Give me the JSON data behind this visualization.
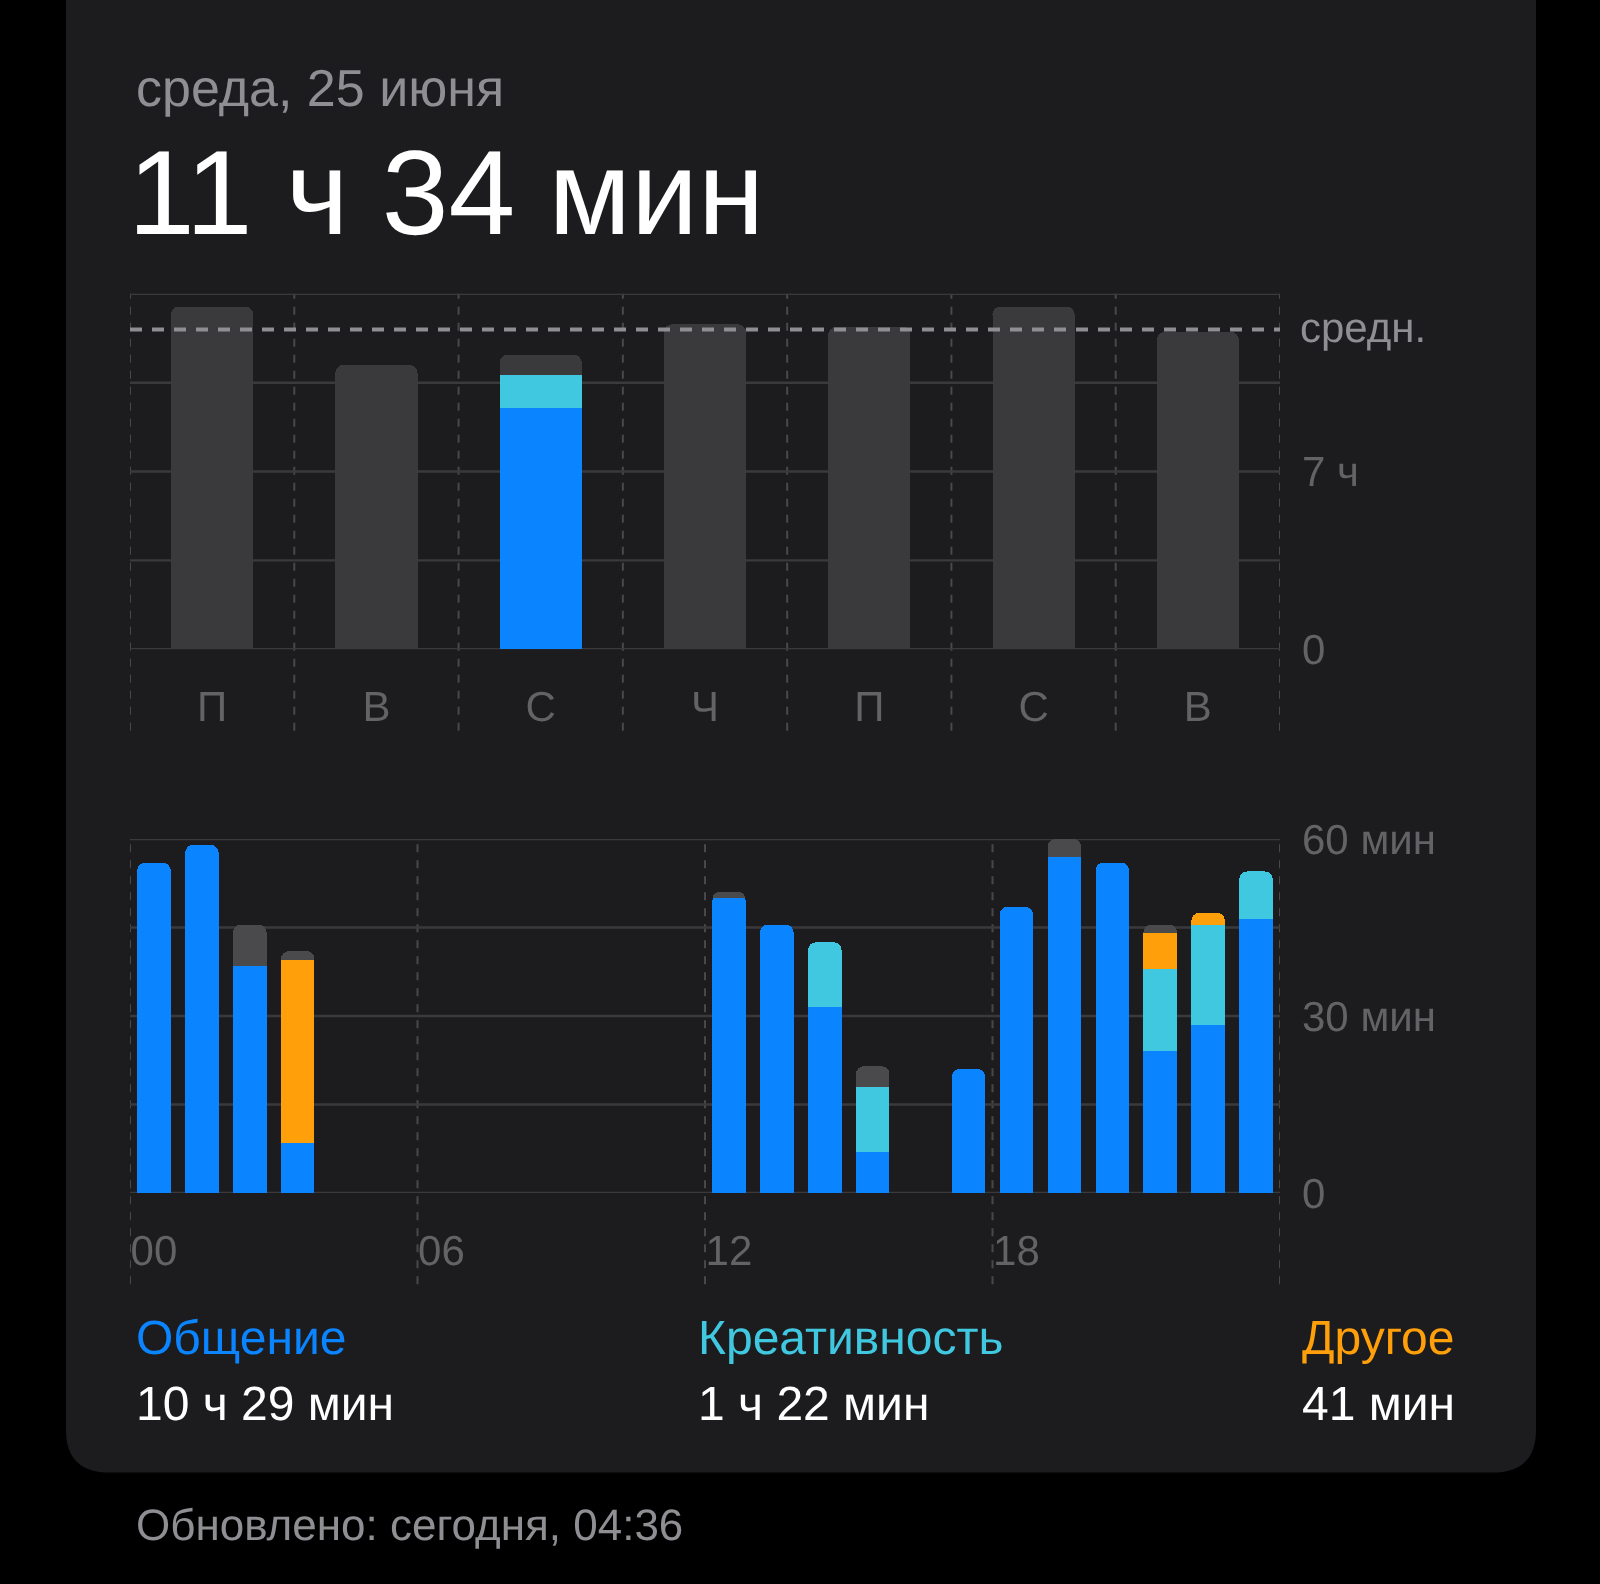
{
  "chart_data": [
    {
      "type": "bar",
      "title": "среда, 25 июня",
      "subtitle": "11 ч 34 мин",
      "categories": [
        "П",
        "В",
        "С",
        "Ч",
        "П",
        "С",
        "В"
      ],
      "stacked": true,
      "series": [
        {
          "color": "#0a84ff",
          "values": [
            null,
            null,
            9.5,
            null,
            null,
            null,
            null
          ]
        },
        {
          "color": "#40c8e0",
          "values": [
            null,
            null,
            1.3,
            null,
            null,
            null,
            null
          ]
        },
        {
          "color": "#3a3a3c",
          "values": [
            13.5,
            11.2,
            0.8,
            12.8,
            12.7,
            13.5,
            12.5
          ]
        }
      ],
      "ylim": [
        0,
        14
      ],
      "yticks": [
        0,
        {
          "value": 3.5,
          "label": null
        },
        {
          "value": 7,
          "label": "7 ч"
        },
        {
          "value": 10.5,
          "label": null
        },
        {
          "value": 14,
          "label": null
        }
      ],
      "ref_lines": [
        {
          "axis": "y",
          "value": 12.6,
          "label": "средн.",
          "color": "#8e8e93",
          "line_style": "dashed"
        }
      ],
      "grid": true
    },
    {
      "type": "bar",
      "categories": [
        "00",
        null,
        null,
        null,
        null,
        null,
        "06",
        null,
        null,
        null,
        null,
        null,
        "12",
        null,
        null,
        null,
        null,
        null,
        "18",
        null,
        null,
        null,
        null,
        null
      ],
      "stacked": true,
      "series": [
        {
          "name": "Общение",
          "color": "#0a84ff",
          "values": [
            56,
            59,
            38.5,
            8.5,
            null,
            null,
            null,
            null,
            null,
            null,
            null,
            null,
            50,
            45.5,
            31.5,
            7,
            null,
            21,
            48.5,
            57,
            56,
            24,
            28.5,
            46.5
          ]
        },
        {
          "name": "Креативность",
          "color": "#40c8e0",
          "values": [
            null,
            null,
            null,
            null,
            null,
            null,
            null,
            null,
            null,
            null,
            null,
            null,
            null,
            null,
            11,
            11,
            null,
            null,
            null,
            null,
            null,
            14,
            17,
            8
          ]
        },
        {
          "name": "Другое",
          "color": "#ff9f0a",
          "values": [
            null,
            null,
            null,
            31,
            null,
            null,
            null,
            null,
            null,
            null,
            null,
            null,
            null,
            null,
            null,
            null,
            null,
            null,
            null,
            null,
            null,
            6,
            2,
            null
          ]
        },
        {
          "color": "#4a4a4c",
          "values": [
            null,
            null,
            7,
            1.5,
            null,
            null,
            null,
            null,
            null,
            null,
            null,
            null,
            1,
            null,
            null,
            3.5,
            null,
            null,
            null,
            3,
            null,
            1.5,
            null,
            null
          ]
        }
      ],
      "ylim": [
        0,
        60
      ],
      "yticks": [
        0,
        {
          "value": 15,
          "label": null
        },
        {
          "value": 30,
          "label": "30 мин"
        },
        {
          "value": 45,
          "label": null
        },
        {
          "value": 60,
          "label": "60 мин"
        }
      ],
      "grid": true,
      "legend": "bottom",
      "annotations": [
        "10 ч 29 мин",
        "1 ч 22 мин",
        "41 мин",
        "Обновлено: сегодня, 04:36"
      ]
    }
  ]
}
